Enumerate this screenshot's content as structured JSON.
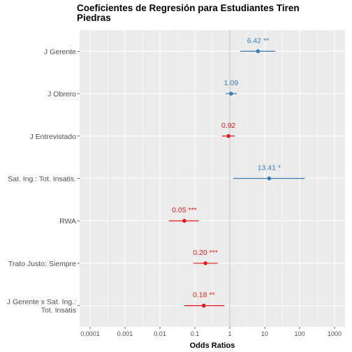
{
  "chart_data": {
    "type": "forest",
    "title_lines": [
      "Coeficientes de Regresión para Estudiantes Tiren",
      "Piedras"
    ],
    "xlabel": "Odds Ratios",
    "x_scale": "log10",
    "xlim": [
      5e-05,
      2000
    ],
    "x_ticks": [
      {
        "value": 0.0001,
        "label": "0.0001"
      },
      {
        "value": 0.001,
        "label": "0.001"
      },
      {
        "value": 0.01,
        "label": "0.01"
      },
      {
        "value": 0.1,
        "label": "0.1"
      },
      {
        "value": 1,
        "label": "1"
      },
      {
        "value": 10,
        "label": "10"
      },
      {
        "value": 100,
        "label": "100"
      },
      {
        "value": 1000,
        "label": "1000"
      }
    ],
    "reference_line": 1,
    "grid": true,
    "colors": {
      "positive": "#377eb8",
      "negative": "#e41a1c",
      "panel": "#ebebeb",
      "grid": "#ffffff",
      "reference": "#bdbdbd"
    },
    "terms": [
      {
        "label_lines": [
          "J Gerente"
        ],
        "estimate": 6.42,
        "ci_low": 2.0,
        "ci_high": 20.0,
        "label": "6.42 **",
        "direction": "positive"
      },
      {
        "label_lines": [
          "J Obrero"
        ],
        "estimate": 1.09,
        "ci_low": 0.75,
        "ci_high": 1.6,
        "label": "1.09",
        "direction": "positive"
      },
      {
        "label_lines": [
          "J Entrevistado"
        ],
        "estimate": 0.92,
        "ci_low": 0.6,
        "ci_high": 1.4,
        "label": "0.92",
        "direction": "negative"
      },
      {
        "label_lines": [
          "Sat. Ing.: Tot. Insatis."
        ],
        "estimate": 13.41,
        "ci_low": 1.25,
        "ci_high": 140.0,
        "label": "13.41 *",
        "direction": "positive"
      },
      {
        "label_lines": [
          "RWA"
        ],
        "estimate": 0.05,
        "ci_low": 0.018,
        "ci_high": 0.13,
        "label": "0.05 ***",
        "direction": "negative"
      },
      {
        "label_lines": [
          "Trato Justo: Siempre"
        ],
        "estimate": 0.2,
        "ci_low": 0.09,
        "ci_high": 0.45,
        "label": "0.20 ***",
        "direction": "negative"
      },
      {
        "label_lines": [
          "J Gerente x Sat. Ing.:",
          "Tot. Insatis"
        ],
        "estimate": 0.18,
        "ci_low": 0.05,
        "ci_high": 0.7,
        "label": "0.18 **",
        "direction": "negative"
      }
    ]
  }
}
